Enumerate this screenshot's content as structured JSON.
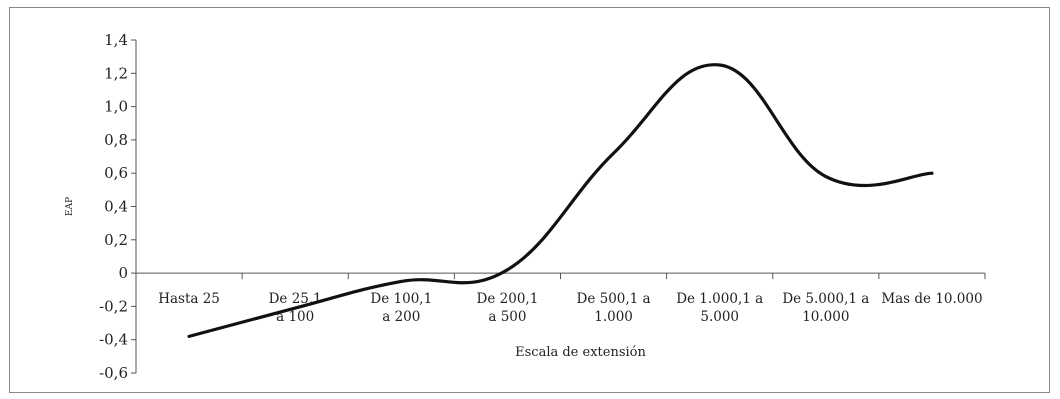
{
  "chart_data": {
    "type": "line",
    "categories": [
      "Hasta 25",
      "De 25,1\na 100",
      "De 100,1\na 200",
      "De 200,1\na 500",
      "De 500,1 a\n1.000",
      "De 1.000,1 a\n5.000",
      "De 5.000,1 a\n10.000",
      "Mas de 10.000"
    ],
    "values": [
      -0.38,
      -0.21,
      -0.05,
      0.02,
      0.72,
      1.25,
      0.58,
      0.6
    ],
    "xlabel": "Escala de extensión",
    "ylabel": "EAP",
    "ylim": [
      -0.6,
      1.4
    ],
    "yticks": [
      "1,4",
      "1,2",
      "1,0",
      "0,8",
      "0,6",
      "0,4",
      "0,2",
      "0",
      "-0,2",
      "-0,4",
      "-0,6"
    ],
    "ytick_values": [
      1.4,
      1.2,
      1.0,
      0.8,
      0.6,
      0.4,
      0.2,
      0,
      -0.2,
      -0.4,
      -0.6
    ],
    "line_color": "#111111",
    "grid": false
  }
}
